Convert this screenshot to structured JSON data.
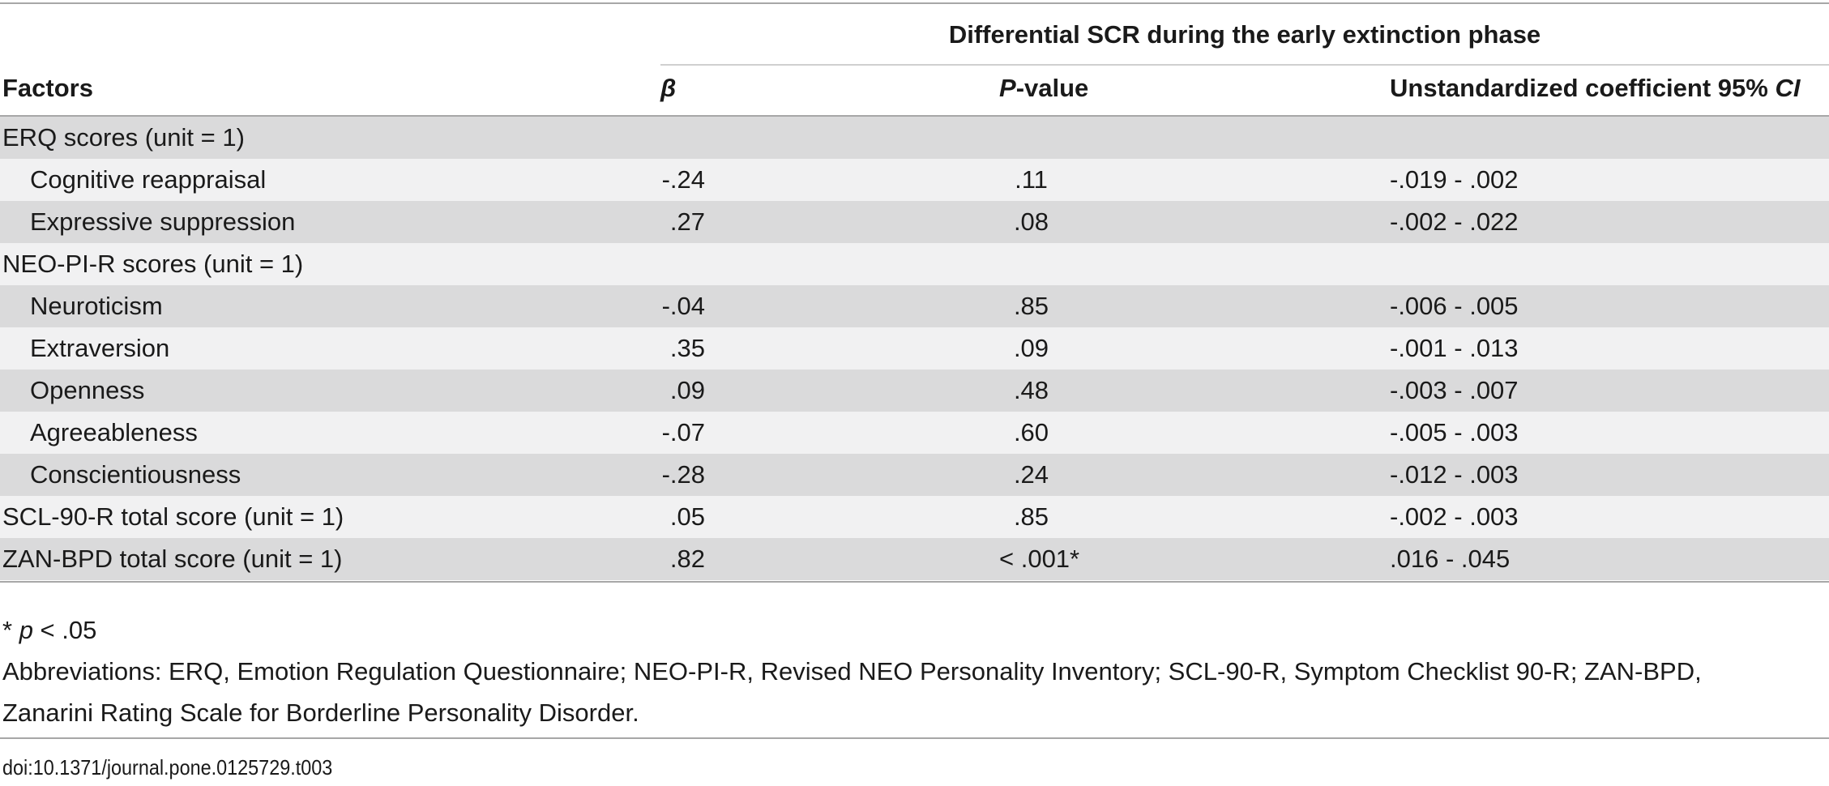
{
  "table": {
    "group_header": "Differential SCR during the early extinction phase",
    "columns": {
      "factors": "Factors",
      "beta": "β",
      "p_italic": "P",
      "p_rest": "-value",
      "ci_text": "Unstandardized coefficient 95% ",
      "ci_italic": "CI"
    },
    "rows": [
      {
        "factor": "ERQ scores (unit = 1)",
        "indent": false,
        "beta": "",
        "p": "",
        "ci": ""
      },
      {
        "factor": "Cognitive reappraisal",
        "indent": true,
        "beta": "-.24",
        "p": ".11",
        "ci": "-.019 - .002"
      },
      {
        "factor": "Expressive suppression",
        "indent": true,
        "beta": ".27",
        "p": ".08",
        "ci": "-.002 - .022"
      },
      {
        "factor": "NEO-PI-R scores (unit = 1)",
        "indent": false,
        "beta": "",
        "p": "",
        "ci": ""
      },
      {
        "factor": "Neuroticism",
        "indent": true,
        "beta": "-.04",
        "p": ".85",
        "ci": "-.006 - .005"
      },
      {
        "factor": "Extraversion",
        "indent": true,
        "beta": ".35",
        "p": ".09",
        "ci": "-.001 - .013"
      },
      {
        "factor": "Openness",
        "indent": true,
        "beta": ".09",
        "p": ".48",
        "ci": "-.003 - .007"
      },
      {
        "factor": "Agreeableness",
        "indent": true,
        "beta": "-.07",
        "p": ".60",
        "ci": "-.005 - .003"
      },
      {
        "factor": "Conscientiousness",
        "indent": true,
        "beta": "-.28",
        "p": ".24",
        "ci": "-.012 - .003"
      },
      {
        "factor": "SCL-90-R total score (unit = 1)",
        "indent": false,
        "beta": ".05",
        "p": ".85",
        "ci": "-.002 - .003"
      },
      {
        "factor": "ZAN-BPD total score (unit = 1)",
        "indent": false,
        "beta": ".82",
        "p": "< .001*",
        "ci": ".016 - .045"
      }
    ]
  },
  "footnotes": {
    "significance_prefix": "* ",
    "significance_italic": "p",
    "significance_rest": " < .05",
    "abbreviations_line1": "Abbreviations: ERQ, Emotion Regulation Questionnaire; NEO-PI-R, Revised NEO Personality Inventory; SCL-90-R, Symptom Checklist 90-R; ZAN-BPD,",
    "abbreviations_line2": "Zanarini Rating Scale for Borderline Personality Disorder."
  },
  "doi": "doi:10.1371/journal.pone.0125729.t003",
  "colors": {
    "row_shade": "#dadadb",
    "row_light": "#f1f1f2",
    "rule": "#a7a7a7"
  }
}
